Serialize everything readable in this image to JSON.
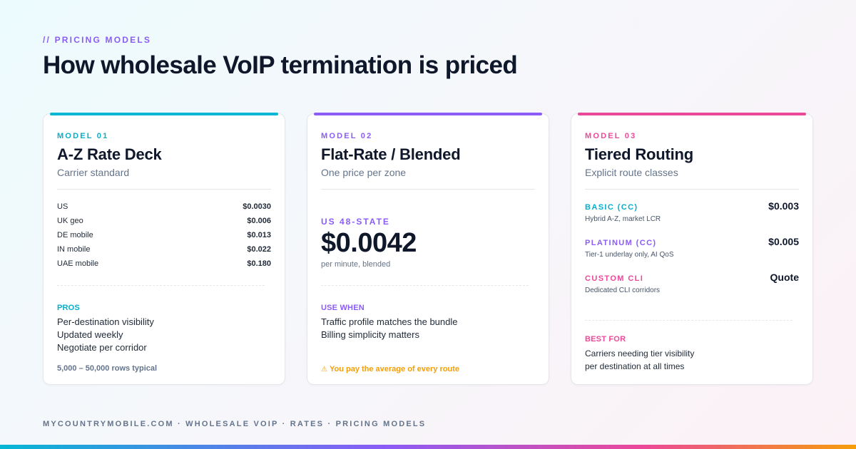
{
  "header": {
    "eyebrow": "// PRICING MODELS",
    "title": "How wholesale VoIP termination is priced"
  },
  "accent_colors": {
    "teal": "#06b6d4",
    "purple": "#8b5cf6",
    "pink": "#ec4899",
    "amber": "#f59e0b"
  },
  "card1": {
    "model_label": "MODEL 01",
    "title": "A-Z Rate Deck",
    "subtitle": "Carrier standard",
    "rates": [
      {
        "dest": "US",
        "rate": "$0.0030"
      },
      {
        "dest": "UK geo",
        "rate": "$0.006"
      },
      {
        "dest": "DE mobile",
        "rate": "$0.013"
      },
      {
        "dest": "IN mobile",
        "rate": "$0.022"
      },
      {
        "dest": "UAE mobile",
        "rate": "$0.180"
      }
    ],
    "pros_label": "PROS",
    "pros": [
      "Per-destination visibility",
      "Updated weekly",
      "Negotiate per corridor"
    ],
    "footnote": "5,000 – 50,000 rows typical"
  },
  "card2": {
    "model_label": "MODEL 02",
    "title": "Flat-Rate / Blended",
    "subtitle": "One price per zone",
    "price_label": "US 48-STATE",
    "price": "$0.0042",
    "price_caption": "per minute, blended",
    "use_label": "USE WHEN",
    "use_items": [
      "Traffic profile matches the bundle",
      "Billing simplicity matters"
    ],
    "warning_icon": "warning-icon",
    "warning": "You pay the average of every route"
  },
  "card3": {
    "model_label": "MODEL 03",
    "title": "Tiered Routing",
    "subtitle": "Explicit route classes",
    "tiers": [
      {
        "name": "BASIC (CC)",
        "desc": "Hybrid A-Z, market LCR",
        "price": "$0.003"
      },
      {
        "name": "PLATINUM (CC)",
        "desc": "Tier-1 underlay only, AI QoS",
        "price": "$0.005"
      },
      {
        "name": "CUSTOM CLI",
        "desc": "Dedicated CLI corridors",
        "price": "Quote"
      }
    ],
    "best_label": "BEST FOR",
    "best_items": [
      "Carriers needing tier visibility",
      "per destination at all times"
    ]
  },
  "footer": {
    "text": "MYCOUNTRYMOBILE.COM · WHOLESALE VOIP · RATES · PRICING MODELS"
  }
}
